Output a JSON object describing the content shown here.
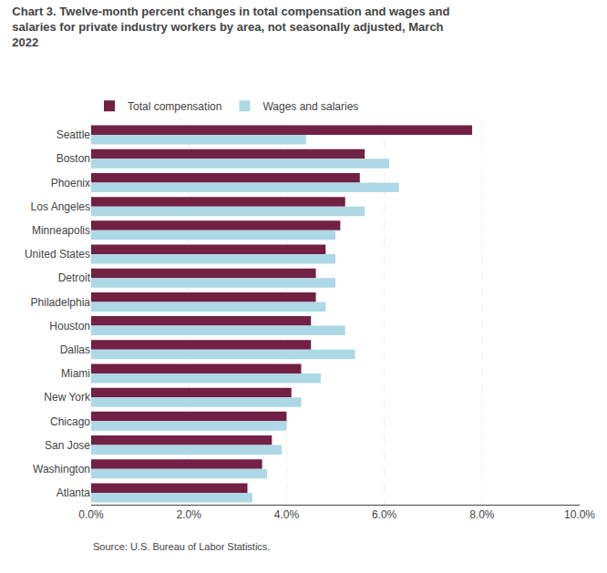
{
  "chart_data": {
    "type": "bar",
    "orientation": "horizontal",
    "title": "Chart 3. Twelve-month percent changes in total compensation and wages and\nsalaries for private industry workers by area, not seasonally adjusted, March\n2022",
    "categories": [
      "Seattle",
      "Boston",
      "Phoenix",
      "Los Angeles",
      "Minneapolis",
      "United States",
      "Detroit",
      "Philadelphia",
      "Houston",
      "Dallas",
      "Miami",
      "New York",
      "Chicago",
      "San Jose",
      "Washington",
      "Atlanta"
    ],
    "series": [
      {
        "name": "Total compensation",
        "color": "#722044",
        "values": [
          7.8,
          5.6,
          5.5,
          5.2,
          5.1,
          4.8,
          4.6,
          4.6,
          4.5,
          4.5,
          4.3,
          4.1,
          4.0,
          3.7,
          3.5,
          3.2
        ]
      },
      {
        "name": "Wages and salaries",
        "color": "#add8e6",
        "values": [
          4.4,
          6.1,
          6.3,
          5.6,
          5.0,
          5.0,
          5.0,
          4.8,
          5.2,
          5.4,
          4.7,
          4.3,
          4.0,
          3.9,
          3.6,
          3.3
        ]
      }
    ],
    "xlim": [
      0,
      10.0
    ],
    "xticks": [
      {
        "value": 0.0,
        "label": "0.0%"
      },
      {
        "value": 2.0,
        "label": "2.0%"
      },
      {
        "value": 4.0,
        "label": "4.0%"
      },
      {
        "value": 6.0,
        "label": "6.0%"
      },
      {
        "value": 8.0,
        "label": "8.0%"
      },
      {
        "value": 10.0,
        "label": "10.0%"
      }
    ],
    "grid": true,
    "legend": "top",
    "annotations": [
      "Source: U.S. Bureau of Labor Statistics."
    ]
  }
}
